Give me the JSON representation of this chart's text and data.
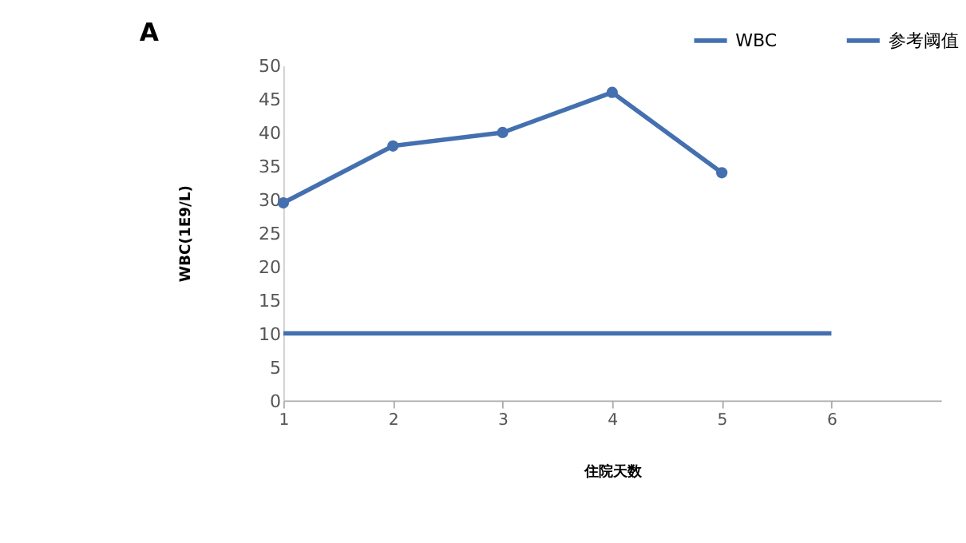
{
  "chart_data": {
    "type": "line",
    "xlabel": "住院天数",
    "ylabel": "WBC(1E9/L)",
    "annotations": [
      "A"
    ],
    "xlim": [
      1,
      7
    ],
    "xticks": [
      1,
      2,
      3,
      4,
      5,
      6
    ],
    "ylim": [
      0,
      50
    ],
    "yticks": [
      0,
      5,
      10,
      15,
      20,
      25,
      30,
      35,
      40,
      45,
      50
    ],
    "grid": false,
    "legend": "top right",
    "line_style": "solid",
    "series": [
      {
        "name": "WBC",
        "color": "#4470b0",
        "x": [
          1,
          2,
          3,
          4,
          5
        ],
        "values": [
          29.5,
          38,
          40,
          46,
          34
        ],
        "marker": "circle"
      },
      {
        "name": "参考阈值",
        "color": "#4470b0",
        "x": [
          1,
          6
        ],
        "values": [
          10,
          10
        ],
        "marker": "none"
      }
    ]
  }
}
